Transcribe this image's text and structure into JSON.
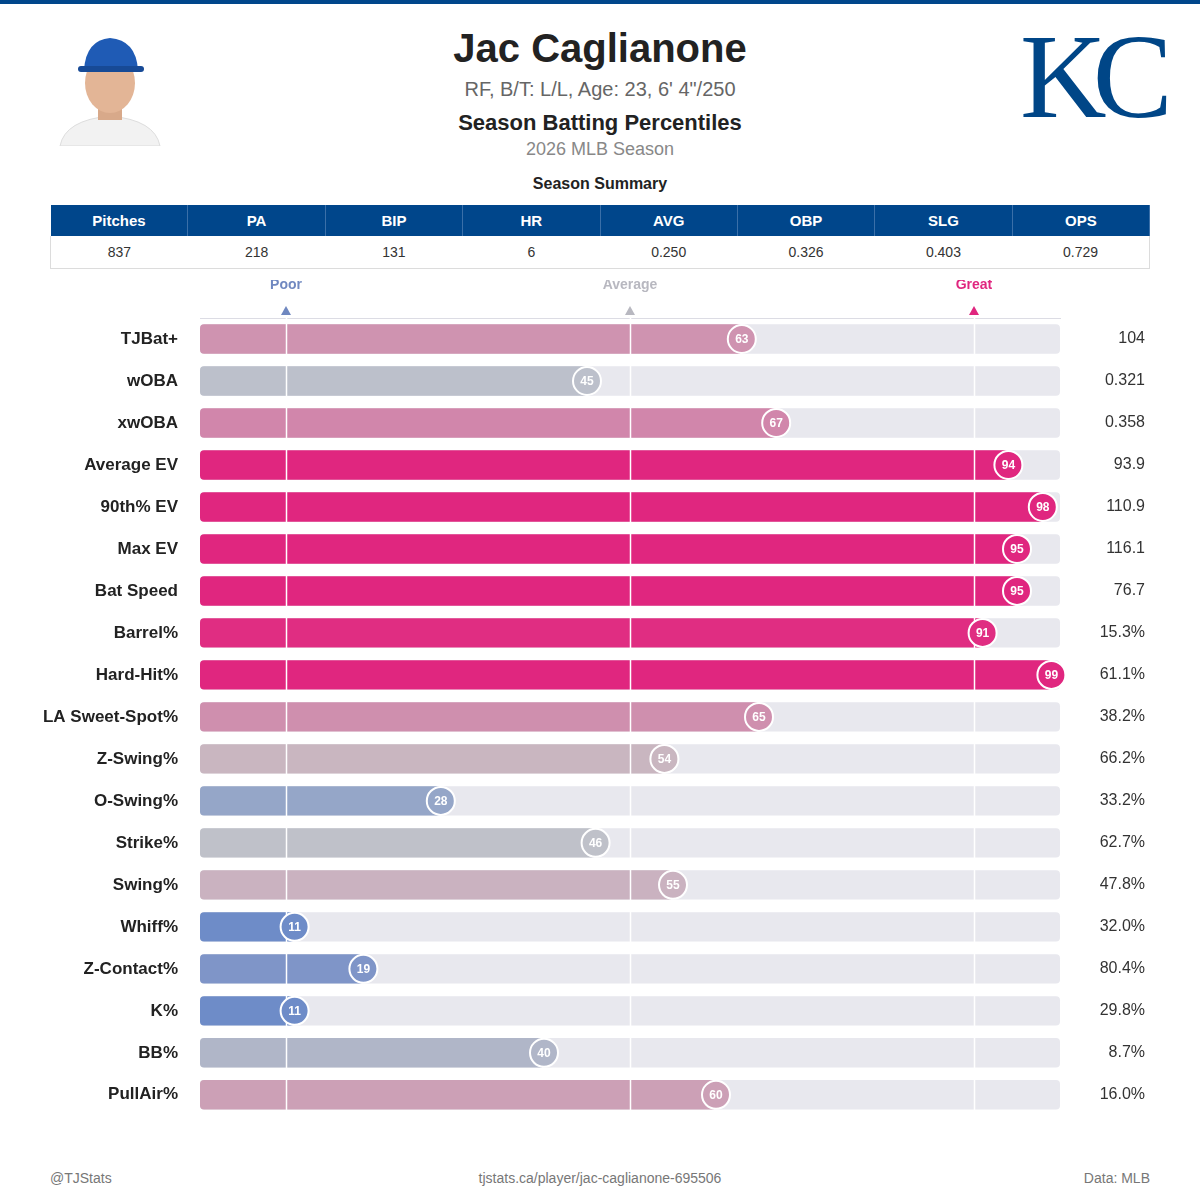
{
  "header": {
    "title": "Jac Caglianone",
    "subtitle": "RF, B/T: L/L, Age: 23, 6' 4\"/250",
    "heading": "Season Batting Percentiles",
    "season": "2026 MLB Season",
    "logo": "KC"
  },
  "summary": {
    "title": "Season Summary",
    "columns": [
      "Pitches",
      "PA",
      "BIP",
      "HR",
      "AVG",
      "OBP",
      "SLG",
      "OPS"
    ],
    "rows": [
      [
        "837",
        "218",
        "131",
        "6",
        "0.250",
        "0.326",
        "0.403",
        "0.729"
      ]
    ]
  },
  "chart_data": {
    "type": "bar",
    "orientation": "horizontal",
    "categories": [
      "TJBat+",
      "wOBA",
      "xwOBA",
      "Average EV",
      "90th% EV",
      "Max EV",
      "Bat Speed",
      "Barrel%",
      "Hard-Hit%",
      "LA Sweet-Spot%",
      "Z-Swing%",
      "O-Swing%",
      "Strike%",
      "Swing%",
      "Whiff%",
      "Z-Contact%",
      "K%",
      "BB%",
      "PullAir%"
    ],
    "values": [
      63,
      45,
      67,
      94,
      98,
      95,
      95,
      91,
      99,
      65,
      54,
      28,
      46,
      55,
      11,
      19,
      11,
      40,
      60
    ],
    "colors": [
      "#cf93b0",
      "#bcc0cb",
      "#d186ab",
      "#e0267f",
      "#e0267f",
      "#e0267f",
      "#e0267f",
      "#e02d82",
      "#e0267f",
      "#cf8fae",
      "#c9b6c0",
      "#95a6c8",
      "#bfc1c9",
      "#cab2c0",
      "#6e8cc8",
      "#7f95c8",
      "#6e8cc8",
      "#b0b6c8",
      "#cca0b6"
    ],
    "stat_values": [
      "104",
      "0.321",
      "0.358",
      "93.9",
      "110.9",
      "116.1",
      "76.7",
      "15.3%",
      "61.1%",
      "38.2%",
      "66.2%",
      "33.2%",
      "62.7%",
      "47.8%",
      "32.0%",
      "80.4%",
      "29.8%",
      "8.7%",
      "16.0%"
    ],
    "xlim": [
      0,
      100
    ],
    "xticks": [
      {
        "value": 10,
        "label": "Poor"
      },
      {
        "value": 50,
        "label": "Average"
      },
      {
        "value": 90,
        "label": "Great"
      }
    ],
    "grid": true,
    "data_labels": true
  },
  "footer": {
    "left": "@TJStats",
    "center": "tjstats.ca/player/jac-caglianone-695506",
    "right": "Data: MLB"
  }
}
